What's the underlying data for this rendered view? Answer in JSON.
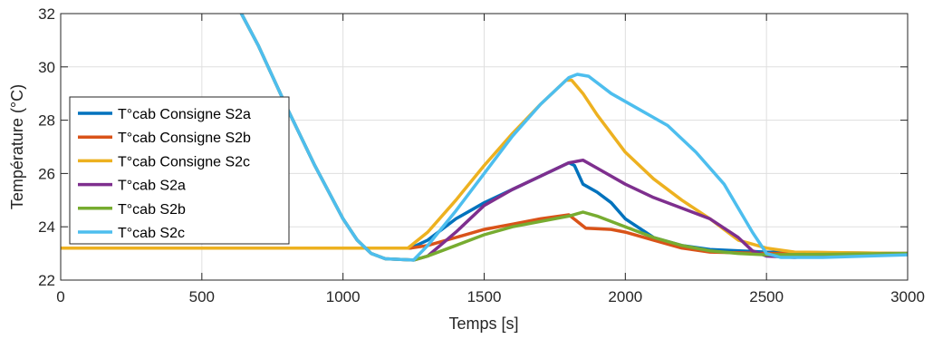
{
  "chart_data": {
    "type": "line",
    "title": "",
    "xlabel": "Temps [s]",
    "ylabel": "Température (°C)",
    "xlim": [
      0,
      3000
    ],
    "ylim": [
      22,
      32
    ],
    "xticks": [
      0,
      500,
      1000,
      1500,
      2000,
      2500,
      3000
    ],
    "yticks": [
      22,
      24,
      26,
      28,
      30,
      32
    ],
    "grid": true,
    "legend_position": "left",
    "series": [
      {
        "name": "T°cab Consigne S2a",
        "color": "#0072BD",
        "points": [
          [
            0,
            23.2
          ],
          [
            1240,
            23.2
          ],
          [
            1300,
            23.5
          ],
          [
            1400,
            24.3
          ],
          [
            1500,
            24.9
          ],
          [
            1600,
            25.4
          ],
          [
            1700,
            25.9
          ],
          [
            1800,
            26.4
          ],
          [
            1820,
            26.3
          ],
          [
            1850,
            25.6
          ],
          [
            1900,
            25.3
          ],
          [
            1950,
            24.9
          ],
          [
            2000,
            24.3
          ],
          [
            2100,
            23.6
          ],
          [
            2200,
            23.3
          ],
          [
            2300,
            23.15
          ],
          [
            2500,
            23.05
          ],
          [
            3000,
            23.0
          ]
        ]
      },
      {
        "name": "T°cab Consigne S2b",
        "color": "#D95319",
        "points": [
          [
            0,
            23.2
          ],
          [
            1240,
            23.2
          ],
          [
            1300,
            23.3
          ],
          [
            1400,
            23.6
          ],
          [
            1500,
            23.9
          ],
          [
            1600,
            24.1
          ],
          [
            1700,
            24.3
          ],
          [
            1800,
            24.45
          ],
          [
            1860,
            23.95
          ],
          [
            1950,
            23.9
          ],
          [
            2000,
            23.8
          ],
          [
            2100,
            23.5
          ],
          [
            2200,
            23.2
          ],
          [
            2300,
            23.05
          ],
          [
            2500,
            23.0
          ],
          [
            3000,
            23.0
          ]
        ]
      },
      {
        "name": "T°cab Consigne S2c",
        "color": "#EDB120",
        "points": [
          [
            0,
            23.2
          ],
          [
            1230,
            23.2
          ],
          [
            1300,
            23.8
          ],
          [
            1400,
            25.0
          ],
          [
            1500,
            26.3
          ],
          [
            1600,
            27.5
          ],
          [
            1700,
            28.6
          ],
          [
            1790,
            29.5
          ],
          [
            1810,
            29.5
          ],
          [
            1850,
            29.0
          ],
          [
            1900,
            28.2
          ],
          [
            2000,
            26.8
          ],
          [
            2100,
            25.8
          ],
          [
            2200,
            25.0
          ],
          [
            2300,
            24.3
          ],
          [
            2400,
            23.5
          ],
          [
            2500,
            23.2
          ],
          [
            2600,
            23.05
          ],
          [
            3000,
            23.0
          ]
        ]
      },
      {
        "name": "T°cab S2a",
        "color": "#7E2F8E",
        "points": [
          [
            640,
            32
          ],
          [
            700,
            30.8
          ],
          [
            800,
            28.5
          ],
          [
            900,
            26.3
          ],
          [
            1000,
            24.3
          ],
          [
            1050,
            23.5
          ],
          [
            1100,
            23.0
          ],
          [
            1150,
            22.8
          ],
          [
            1250,
            22.75
          ],
          [
            1300,
            22.9
          ],
          [
            1400,
            23.8
          ],
          [
            1500,
            24.8
          ],
          [
            1600,
            25.4
          ],
          [
            1700,
            25.9
          ],
          [
            1800,
            26.4
          ],
          [
            1850,
            26.5
          ],
          [
            1900,
            26.2
          ],
          [
            2000,
            25.6
          ],
          [
            2100,
            25.1
          ],
          [
            2200,
            24.7
          ],
          [
            2300,
            24.3
          ],
          [
            2400,
            23.6
          ],
          [
            2450,
            23.1
          ],
          [
            2500,
            22.9
          ],
          [
            2600,
            22.85
          ],
          [
            2700,
            22.95
          ],
          [
            3000,
            23.0
          ]
        ]
      },
      {
        "name": "T°cab S2b",
        "color": "#77AC30",
        "points": [
          [
            640,
            32
          ],
          [
            700,
            30.8
          ],
          [
            800,
            28.5
          ],
          [
            900,
            26.3
          ],
          [
            1000,
            24.3
          ],
          [
            1050,
            23.5
          ],
          [
            1100,
            23.0
          ],
          [
            1150,
            22.8
          ],
          [
            1250,
            22.75
          ],
          [
            1300,
            22.9
          ],
          [
            1400,
            23.3
          ],
          [
            1500,
            23.7
          ],
          [
            1600,
            24.0
          ],
          [
            1700,
            24.2
          ],
          [
            1800,
            24.4
          ],
          [
            1850,
            24.55
          ],
          [
            1900,
            24.4
          ],
          [
            2000,
            24.0
          ],
          [
            2100,
            23.6
          ],
          [
            2200,
            23.3
          ],
          [
            2300,
            23.1
          ],
          [
            2400,
            23.0
          ],
          [
            2500,
            22.95
          ],
          [
            3000,
            23.0
          ]
        ]
      },
      {
        "name": "T°cab S2c",
        "color": "#4DBEEE",
        "points": [
          [
            640,
            32
          ],
          [
            700,
            30.8
          ],
          [
            800,
            28.5
          ],
          [
            900,
            26.3
          ],
          [
            1000,
            24.3
          ],
          [
            1050,
            23.5
          ],
          [
            1100,
            23.0
          ],
          [
            1150,
            22.8
          ],
          [
            1250,
            22.75
          ],
          [
            1300,
            23.3
          ],
          [
            1400,
            24.6
          ],
          [
            1500,
            26.0
          ],
          [
            1600,
            27.4
          ],
          [
            1700,
            28.6
          ],
          [
            1800,
            29.6
          ],
          [
            1830,
            29.72
          ],
          [
            1870,
            29.65
          ],
          [
            1950,
            29.0
          ],
          [
            2050,
            28.4
          ],
          [
            2150,
            27.8
          ],
          [
            2250,
            26.8
          ],
          [
            2350,
            25.6
          ],
          [
            2450,
            23.8
          ],
          [
            2500,
            23.0
          ],
          [
            2550,
            22.85
          ],
          [
            2700,
            22.85
          ],
          [
            3000,
            22.95
          ]
        ]
      }
    ]
  }
}
